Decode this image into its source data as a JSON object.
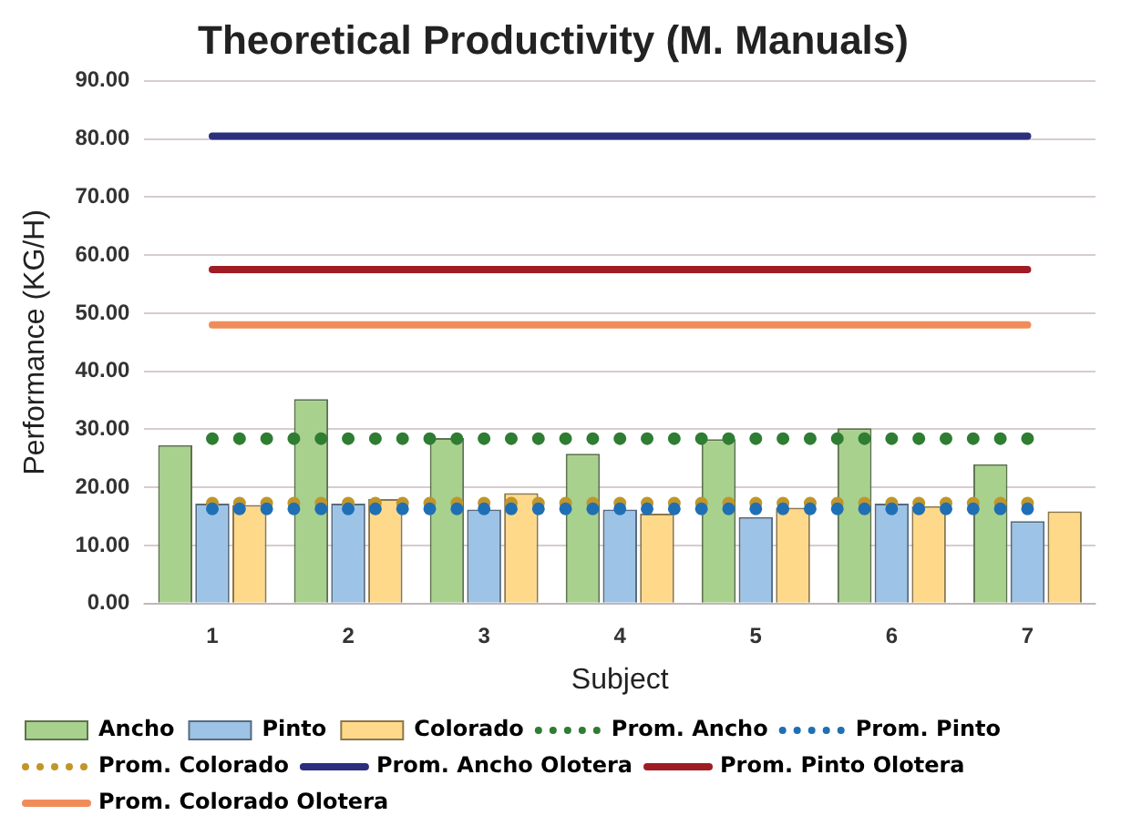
{
  "chart_data": {
    "type": "bar",
    "title": "Theoretical Productivity (M. Manuals)",
    "xlabel": "Subject",
    "ylabel": "Performance (KG/H)",
    "categories": [
      "1",
      "2",
      "3",
      "4",
      "5",
      "6",
      "7"
    ],
    "ylim": [
      0,
      90
    ],
    "yticks": [
      {
        "value": 0,
        "label": "0.00"
      },
      {
        "value": 10,
        "label": "10.00"
      },
      {
        "value": 20,
        "label": "20.00"
      },
      {
        "value": 30,
        "label": "30.00"
      },
      {
        "value": 40,
        "label": "40.00"
      },
      {
        "value": 50,
        "label": "50.00"
      },
      {
        "value": 60,
        "label": "60.00"
      },
      {
        "value": 70,
        "label": "70.00"
      },
      {
        "value": 80,
        "label": "80.00"
      },
      {
        "value": 90,
        "label": "90.00"
      }
    ],
    "grid": "y",
    "legend": "bottom",
    "series": [
      {
        "name": "Ancho",
        "color": "#a9d18e",
        "values": [
          27.3,
          35.2,
          28.5,
          25.8,
          28.3,
          30.2,
          24.0
        ]
      },
      {
        "name": "Pinto",
        "color": "#9dc3e6",
        "values": [
          17.2,
          17.2,
          16.2,
          16.2,
          14.9,
          17.2,
          14.2
        ]
      },
      {
        "name": "Colorado",
        "color": "#ffd98a",
        "values": [
          17.0,
          18.0,
          19.0,
          15.5,
          16.5,
          16.8,
          15.9
        ]
      },
      {
        "name": "Prom. Ancho",
        "type": "line",
        "line_style": "dotted",
        "color": "#2e7d32",
        "values": [
          28.4,
          28.4,
          28.4,
          28.4,
          28.4,
          28.4,
          28.4
        ]
      },
      {
        "name": "Prom. Pinto",
        "type": "line",
        "line_style": "dotted",
        "color": "#1f6fb5",
        "values": [
          16.3,
          16.3,
          16.3,
          16.3,
          16.3,
          16.3,
          16.3
        ]
      },
      {
        "name": "Prom. Colorado",
        "type": "line",
        "line_style": "dotted",
        "color": "#c0962a",
        "values": [
          17.3,
          17.3,
          17.3,
          17.3,
          17.3,
          17.3,
          17.3
        ]
      },
      {
        "name": "Prom. Ancho Olotera",
        "type": "line",
        "line_style": "solid",
        "color": "#2b2f7e",
        "values": [
          80.5,
          80.5,
          80.5,
          80.5,
          80.5,
          80.5,
          80.5
        ]
      },
      {
        "name": "Prom. Pinto Olotera",
        "type": "line",
        "line_style": "solid",
        "color": "#a01c24",
        "values": [
          57.5,
          57.5,
          57.5,
          57.5,
          57.5,
          57.5,
          57.5
        ]
      },
      {
        "name": "Prom. Colorado Olotera",
        "type": "line",
        "line_style": "solid",
        "color": "#f08c5a",
        "values": [
          48.0,
          48.0,
          48.0,
          48.0,
          48.0,
          48.0,
          48.0
        ]
      }
    ]
  }
}
